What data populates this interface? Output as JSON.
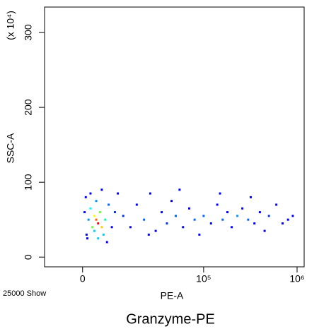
{
  "chart_data": {
    "type": "scatter",
    "x_label": "PE-A",
    "y_label": "SSC-A",
    "y_multiplier": "(x 10⁴)",
    "event_count": "25000 Show",
    "caption": "Granzyme-PE",
    "xscale": {
      "type": "asinh",
      "cofactor": 10200
    },
    "xlim": [
      -11000,
      1190000
    ],
    "ylim": [
      -13,
      334
    ],
    "xticks": [
      0,
      {
        "value": 100000,
        "label": "10⁵"
      },
      {
        "value": 1000000,
        "label": "10⁶"
      }
    ],
    "yticks": [
      0,
      100,
      200,
      300
    ],
    "x": [
      4000,
      3500,
      5000,
      3000,
      4500,
      2500,
      6000,
      2000,
      5500,
      3000,
      1500,
      7000,
      1000,
      8000,
      2000,
      5000,
      500,
      9000,
      3500,
      1200,
      6500,
      10000,
      800,
      4000,
      12000,
      15000,
      18000,
      22000,
      26000,
      30000,
      35000,
      40000,
      45000,
      50000,
      60000,
      70000,
      80000,
      90000,
      100000,
      120000,
      140000,
      160000,
      180000,
      200000,
      230000,
      260000,
      300000,
      350000,
      400000,
      450000,
      500000,
      600000,
      700000,
      800000,
      25000,
      55000,
      150000,
      320000,
      900000
    ],
    "y": [
      45,
      50,
      40,
      55,
      60,
      40,
      50,
      65,
      30,
      35,
      50,
      70,
      30,
      40,
      85,
      90,
      60,
      60,
      75,
      25,
      20,
      85,
      80,
      25,
      55,
      40,
      70,
      50,
      85,
      35,
      60,
      45,
      75,
      55,
      40,
      65,
      50,
      30,
      55,
      45,
      70,
      50,
      60,
      40,
      55,
      65,
      50,
      45,
      60,
      35,
      55,
      70,
      45,
      50,
      30,
      90,
      85,
      80,
      55
    ],
    "colors": [
      "#ff0000",
      "#ff6600",
      "#ffcc00",
      "#ffff00",
      "#66ff33",
      "#66ff33",
      "#00ff99",
      "#00ffff",
      "#00ccff",
      "#00ccff",
      "#0099ff",
      "#0066ff",
      "#0000ff",
      "#0000ff",
      "#0000ff",
      "#0000ff",
      "#0000ff",
      "#0033ff",
      "#0099ff",
      "#0000ff",
      "#0000ff",
      "#0000ff",
      "#0000ff",
      "#00ccff",
      "#0033ff",
      "#0000ff",
      "#0000ff",
      "#0066ff",
      "#0000ff",
      "#0000ff",
      "#0000ff",
      "#0033ff",
      "#0000ff",
      "#0066ff",
      "#0000ff",
      "#0000ff",
      "#0066ff",
      "#0000ff",
      "#0066ff",
      "#0000ff",
      "#0000ff",
      "#0066ff",
      "#0000ff",
      "#0000ff",
      "#0099ff",
      "#0000ff",
      "#0066ff",
      "#0000ff",
      "#0000ff",
      "#0000ff",
      "#0033ff",
      "#0000ff",
      "#0000ff",
      "#0000ff",
      "#0000ff",
      "#0000ff",
      "#0000ff",
      "#0000ff",
      "#0000ff"
    ]
  }
}
